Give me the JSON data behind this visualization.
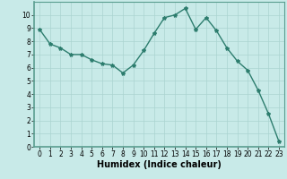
{
  "x": [
    0,
    1,
    2,
    3,
    4,
    5,
    6,
    7,
    8,
    9,
    10,
    11,
    12,
    13,
    14,
    15,
    16,
    17,
    18,
    19,
    20,
    21,
    22,
    23
  ],
  "y": [
    8.9,
    7.8,
    7.5,
    7.0,
    7.0,
    6.6,
    6.3,
    6.2,
    5.6,
    6.2,
    7.3,
    8.6,
    9.8,
    10.0,
    10.5,
    8.9,
    9.8,
    8.8,
    7.5,
    6.5,
    5.8,
    4.3,
    2.5,
    0.4
  ],
  "line_color": "#2d7d6e",
  "marker": "*",
  "marker_size": 3,
  "bg_color": "#c8eae8",
  "grid_color": "#aad4d0",
  "xlabel": "Humidex (Indice chaleur)",
  "xlim": [
    -0.5,
    23.5
  ],
  "ylim": [
    0,
    11
  ],
  "yticks": [
    0,
    1,
    2,
    3,
    4,
    5,
    6,
    7,
    8,
    9,
    10
  ],
  "xticks": [
    0,
    1,
    2,
    3,
    4,
    5,
    6,
    7,
    8,
    9,
    10,
    11,
    12,
    13,
    14,
    15,
    16,
    17,
    18,
    19,
    20,
    21,
    22,
    23
  ],
  "tick_label_fontsize": 5.5,
  "xlabel_fontsize": 7,
  "line_width": 1.0
}
